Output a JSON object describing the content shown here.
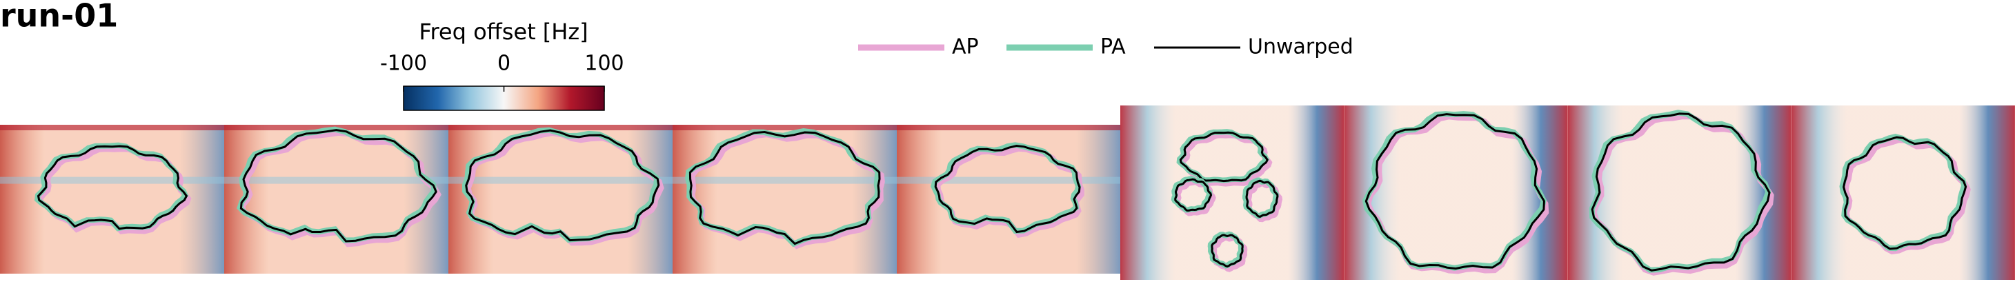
{
  "title": "run-01",
  "colorbar": {
    "label": "Freq offset [Hz]",
    "lim": [
      -100,
      100
    ],
    "ticks": [
      -100,
      0,
      100
    ]
  },
  "legend": [
    {
      "name": "AP",
      "color": "#e8a6d4"
    },
    {
      "name": "PA",
      "color": "#7ccfb0"
    },
    {
      "name": "Unwarped",
      "color": "#000000"
    }
  ]
}
